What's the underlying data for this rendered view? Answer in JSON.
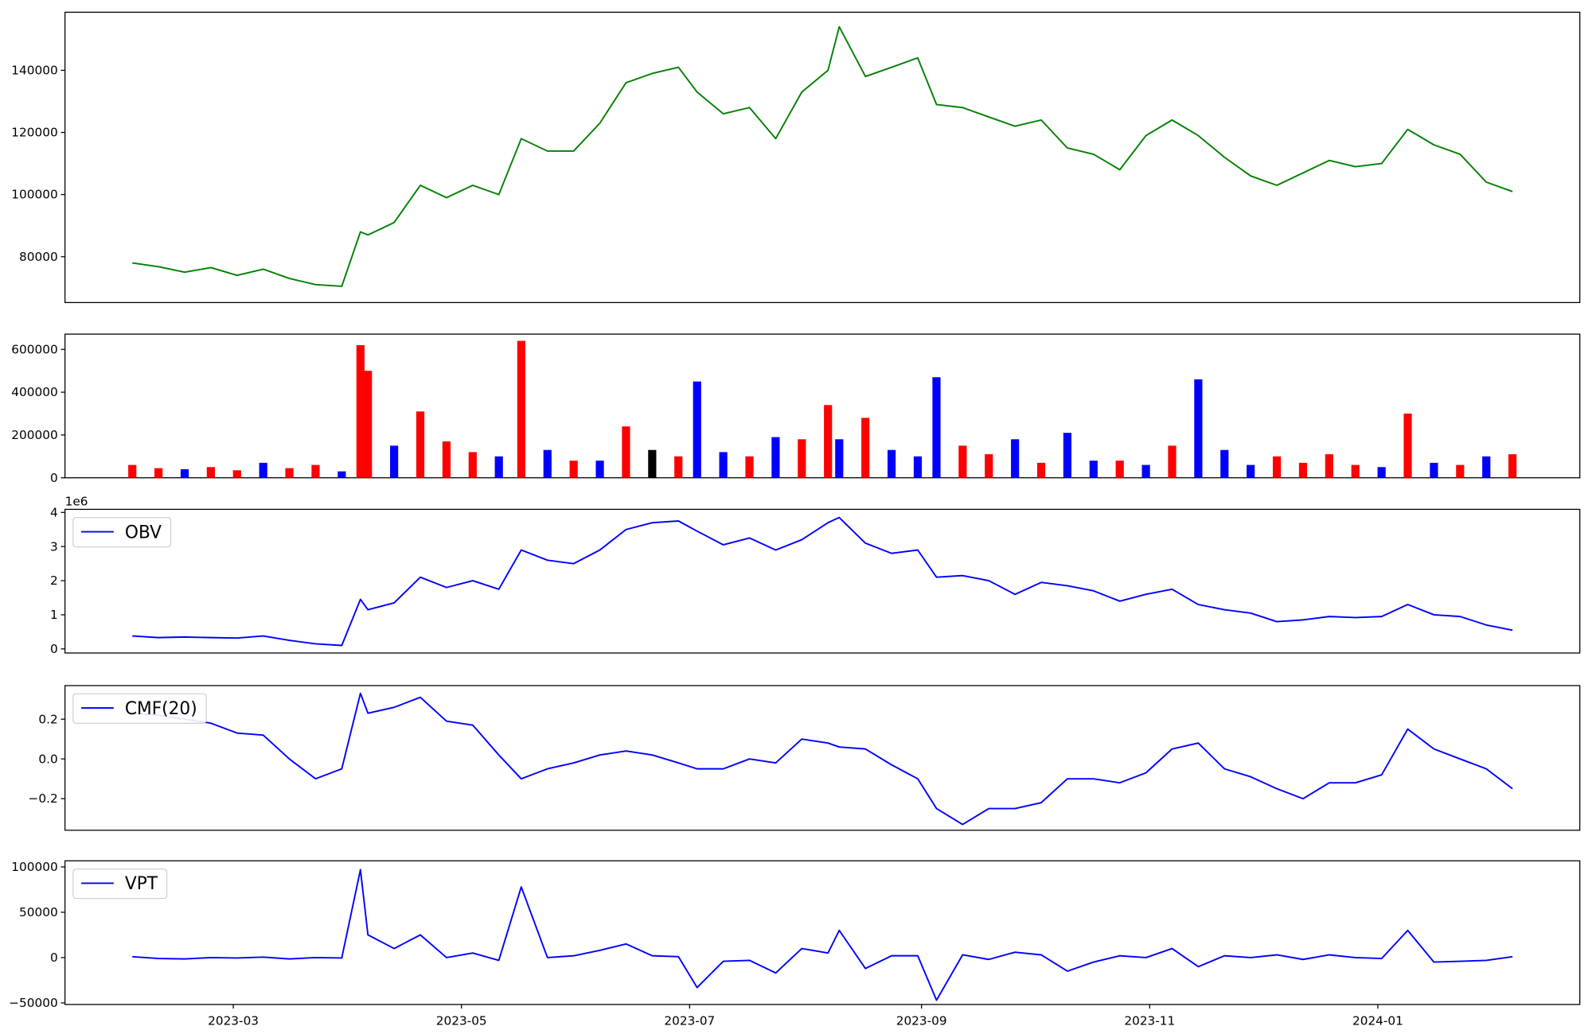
{
  "chart_data": [
    {
      "type": "line",
      "color": "green",
      "x": [
        "2023-02-02",
        "2023-02-09",
        "2023-02-16",
        "2023-02-23",
        "2023-03-02",
        "2023-03-09",
        "2023-03-16",
        "2023-03-23",
        "2023-03-30",
        "2023-04-04",
        "2023-04-06",
        "2023-04-13",
        "2023-04-20",
        "2023-04-27",
        "2023-05-04",
        "2023-05-11",
        "2023-05-17",
        "2023-05-24",
        "2023-05-31",
        "2023-06-07",
        "2023-06-14",
        "2023-06-21",
        "2023-06-28",
        "2023-07-03",
        "2023-07-10",
        "2023-07-17",
        "2023-07-24",
        "2023-07-31",
        "2023-08-07",
        "2023-08-10",
        "2023-08-17",
        "2023-08-24",
        "2023-08-31",
        "2023-09-05",
        "2023-09-12",
        "2023-09-19",
        "2023-09-26",
        "2023-10-03",
        "2023-10-10",
        "2023-10-17",
        "2023-10-24",
        "2023-10-31",
        "2023-11-07",
        "2023-11-14",
        "2023-11-21",
        "2023-11-28",
        "2023-12-05",
        "2023-12-12",
        "2023-12-19",
        "2023-12-26",
        "2024-01-02",
        "2024-01-09",
        "2024-01-16",
        "2024-01-23",
        "2024-01-30",
        "2024-02-06"
      ],
      "values": [
        78000,
        76800,
        75000,
        76500,
        74000,
        76000,
        73000,
        71000,
        70500,
        88000,
        87000,
        91000,
        103000,
        99000,
        103000,
        100000,
        118000,
        114000,
        114000,
        123000,
        136000,
        139000,
        141000,
        133000,
        126000,
        128000,
        118000,
        133000,
        140000,
        154000,
        138000,
        141000,
        144000,
        129000,
        128000,
        125000,
        122000,
        124000,
        115000,
        113000,
        108000,
        119000,
        124000,
        119000,
        112000,
        106000,
        103000,
        107000,
        111000,
        109000,
        110000,
        121000,
        116000,
        113000,
        104000,
        101000
      ],
      "xlim": [
        "2023-01-15",
        "2024-02-24"
      ],
      "ylim": [
        65245,
        158690
      ],
      "yticks": [
        80000,
        100000,
        120000,
        140000
      ]
    },
    {
      "type": "bar",
      "x": [
        "2023-02-02",
        "2023-02-09",
        "2023-02-16",
        "2023-02-23",
        "2023-03-02",
        "2023-03-09",
        "2023-03-16",
        "2023-03-23",
        "2023-03-30",
        "2023-04-04",
        "2023-04-06",
        "2023-04-13",
        "2023-04-20",
        "2023-04-27",
        "2023-05-04",
        "2023-05-11",
        "2023-05-17",
        "2023-05-24",
        "2023-05-31",
        "2023-06-07",
        "2023-06-14",
        "2023-06-21",
        "2023-06-28",
        "2023-07-03",
        "2023-07-10",
        "2023-07-17",
        "2023-07-24",
        "2023-07-31",
        "2023-08-07",
        "2023-08-10",
        "2023-08-17",
        "2023-08-24",
        "2023-08-31",
        "2023-09-05",
        "2023-09-12",
        "2023-09-19",
        "2023-09-26",
        "2023-10-03",
        "2023-10-10",
        "2023-10-17",
        "2023-10-24",
        "2023-10-31",
        "2023-11-07",
        "2023-11-14",
        "2023-11-21",
        "2023-11-28",
        "2023-12-05",
        "2023-12-12",
        "2023-12-19",
        "2023-12-26",
        "2024-01-02",
        "2024-01-09",
        "2024-01-16",
        "2024-01-23",
        "2024-01-30",
        "2024-02-06"
      ],
      "values": [
        60000,
        45000,
        40000,
        50000,
        35000,
        70000,
        45000,
        60000,
        30000,
        620000,
        500000,
        150000,
        310000,
        170000,
        120000,
        100000,
        640000,
        130000,
        80000,
        80000,
        240000,
        130000,
        100000,
        450000,
        120000,
        100000,
        190000,
        180000,
        340000,
        180000,
        280000,
        130000,
        100000,
        470000,
        150000,
        110000,
        180000,
        70000,
        210000,
        80000,
        80000,
        60000,
        150000,
        460000,
        130000,
        60000,
        100000,
        70000,
        110000,
        60000,
        50000,
        300000,
        70000,
        60000,
        100000,
        110000
      ],
      "colors": [
        "red",
        "red",
        "blue",
        "red",
        "red",
        "blue",
        "red",
        "red",
        "blue",
        "red",
        "red",
        "blue",
        "red",
        "red",
        "red",
        "blue",
        "red",
        "blue",
        "red",
        "blue",
        "red",
        "black",
        "red",
        "blue",
        "blue",
        "red",
        "blue",
        "red",
        "red",
        "blue",
        "red",
        "blue",
        "blue",
        "blue",
        "red",
        "red",
        "blue",
        "red",
        "blue",
        "blue",
        "red",
        "blue",
        "red",
        "blue",
        "blue",
        "blue",
        "red",
        "red",
        "red",
        "red",
        "blue",
        "red",
        "blue",
        "red",
        "blue",
        "red"
      ],
      "xlim": [
        "2023-01-15",
        "2024-02-24"
      ],
      "ylim": [
        0,
        671400
      ],
      "yticks": [
        0,
        200000,
        400000,
        600000
      ]
    },
    {
      "type": "line",
      "y_offset_label": "1e6",
      "legend": "upper left",
      "x": [
        "2023-02-02",
        "2023-02-09",
        "2023-02-16",
        "2023-02-23",
        "2023-03-02",
        "2023-03-09",
        "2023-03-16",
        "2023-03-23",
        "2023-03-30",
        "2023-04-04",
        "2023-04-06",
        "2023-04-13",
        "2023-04-20",
        "2023-04-27",
        "2023-05-04",
        "2023-05-11",
        "2023-05-17",
        "2023-05-24",
        "2023-05-31",
        "2023-06-07",
        "2023-06-14",
        "2023-06-21",
        "2023-06-28",
        "2023-07-03",
        "2023-07-10",
        "2023-07-17",
        "2023-07-24",
        "2023-07-31",
        "2023-08-07",
        "2023-08-10",
        "2023-08-17",
        "2023-08-24",
        "2023-08-31",
        "2023-09-05",
        "2023-09-12",
        "2023-09-19",
        "2023-09-26",
        "2023-10-03",
        "2023-10-10",
        "2023-10-17",
        "2023-10-24",
        "2023-10-31",
        "2023-11-07",
        "2023-11-14",
        "2023-11-21",
        "2023-11-28",
        "2023-12-05",
        "2023-12-12",
        "2023-12-19",
        "2023-12-26",
        "2024-01-02",
        "2024-01-09",
        "2024-01-16",
        "2024-01-23",
        "2024-01-30",
        "2024-02-06"
      ],
      "series": [
        {
          "name": "OBV",
          "color": "blue",
          "values": [
            0.38,
            0.33,
            0.35,
            0.33,
            0.32,
            0.38,
            0.25,
            0.15,
            0.1,
            1.45,
            1.15,
            1.35,
            2.1,
            1.8,
            2.0,
            1.75,
            2.9,
            2.6,
            2.5,
            2.9,
            3.5,
            3.7,
            3.75,
            3.45,
            3.05,
            3.25,
            2.9,
            3.2,
            3.7,
            3.85,
            3.1,
            2.8,
            2.9,
            2.1,
            2.15,
            2.0,
            1.6,
            1.95,
            1.85,
            1.7,
            1.4,
            1.6,
            1.75,
            1.3,
            1.15,
            1.05,
            0.8,
            0.85,
            0.95,
            0.92,
            0.95,
            1.3,
            1.0,
            0.95,
            0.7,
            0.55
          ]
        }
      ],
      "xlim": [
        "2023-01-15",
        "2024-02-24"
      ],
      "ylim": [
        -0.12,
        4.09
      ],
      "yticks": [
        0,
        1,
        2,
        3,
        4
      ]
    },
    {
      "type": "line",
      "legend": "upper left",
      "x": [
        "2023-02-02",
        "2023-02-09",
        "2023-02-16",
        "2023-02-23",
        "2023-03-02",
        "2023-03-09",
        "2023-03-16",
        "2023-03-23",
        "2023-03-30",
        "2023-04-04",
        "2023-04-06",
        "2023-04-13",
        "2023-04-20",
        "2023-04-27",
        "2023-05-04",
        "2023-05-11",
        "2023-05-17",
        "2023-05-24",
        "2023-05-31",
        "2023-06-07",
        "2023-06-14",
        "2023-06-21",
        "2023-06-28",
        "2023-07-03",
        "2023-07-10",
        "2023-07-17",
        "2023-07-24",
        "2023-07-31",
        "2023-08-07",
        "2023-08-10",
        "2023-08-17",
        "2023-08-24",
        "2023-08-31",
        "2023-09-05",
        "2023-09-12",
        "2023-09-19",
        "2023-09-26",
        "2023-10-03",
        "2023-10-10",
        "2023-10-17",
        "2023-10-24",
        "2023-10-31",
        "2023-11-07",
        "2023-11-14",
        "2023-11-21",
        "2023-11-28",
        "2023-12-05",
        "2023-12-12",
        "2023-12-19",
        "2023-12-26",
        "2024-01-02",
        "2024-01-09",
        "2024-01-16",
        "2024-01-23",
        "2024-01-30",
        "2024-02-06"
      ],
      "series": [
        {
          "name": "CMF(20)",
          "color": "blue",
          "values": [
            0.23,
            0.22,
            0.2,
            0.18,
            0.13,
            0.12,
            0.0,
            -0.1,
            -0.05,
            0.33,
            0.23,
            0.26,
            0.31,
            0.19,
            0.17,
            0.02,
            -0.1,
            -0.05,
            -0.02,
            0.02,
            0.04,
            0.02,
            -0.02,
            -0.05,
            -0.05,
            0.0,
            -0.02,
            0.1,
            0.08,
            0.06,
            0.05,
            -0.03,
            -0.1,
            -0.25,
            -0.33,
            -0.25,
            -0.25,
            -0.22,
            -0.1,
            -0.1,
            -0.12,
            -0.07,
            0.05,
            0.08,
            -0.05,
            -0.09,
            -0.15,
            -0.2,
            -0.12,
            -0.12,
            -0.08,
            0.15,
            0.05,
            0.0,
            -0.05,
            -0.15
          ]
        }
      ],
      "xlim": [
        "2023-01-15",
        "2024-02-24"
      ],
      "ylim": [
        -0.359,
        0.369
      ],
      "yticks": [
        {
          "value": -0.2,
          "label": "−0.2"
        },
        {
          "value": 0,
          "label": "0.0"
        },
        0.2
      ]
    },
    {
      "type": "line",
      "legend": "upper left",
      "x": [
        "2023-02-02",
        "2023-02-09",
        "2023-02-16",
        "2023-02-23",
        "2023-03-02",
        "2023-03-09",
        "2023-03-16",
        "2023-03-23",
        "2023-03-30",
        "2023-04-04",
        "2023-04-06",
        "2023-04-13",
        "2023-04-20",
        "2023-04-27",
        "2023-05-04",
        "2023-05-11",
        "2023-05-17",
        "2023-05-24",
        "2023-05-31",
        "2023-06-07",
        "2023-06-14",
        "2023-06-21",
        "2023-06-28",
        "2023-07-03",
        "2023-07-10",
        "2023-07-17",
        "2023-07-24",
        "2023-07-31",
        "2023-08-07",
        "2023-08-10",
        "2023-08-17",
        "2023-08-24",
        "2023-08-31",
        "2023-09-05",
        "2023-09-12",
        "2023-09-19",
        "2023-09-26",
        "2023-10-03",
        "2023-10-10",
        "2023-10-17",
        "2023-10-24",
        "2023-10-31",
        "2023-11-07",
        "2023-11-14",
        "2023-11-21",
        "2023-11-28",
        "2023-12-05",
        "2023-12-12",
        "2023-12-19",
        "2023-12-26",
        "2024-01-02",
        "2024-01-09",
        "2024-01-16",
        "2024-01-23",
        "2024-01-30",
        "2024-02-06"
      ],
      "series": [
        {
          "name": "VPT",
          "color": "blue",
          "values": [
            1000,
            -1000,
            -1500,
            0,
            -500,
            500,
            -1500,
            0,
            -500,
            97000,
            25000,
            10000,
            25000,
            0,
            5000,
            -3000,
            78000,
            0,
            2000,
            8000,
            15000,
            2000,
            1000,
            -33000,
            -4000,
            -3000,
            -17000,
            10000,
            5000,
            30000,
            -12000,
            2000,
            2000,
            -47000,
            3000,
            -2000,
            6000,
            3000,
            -15000,
            -5000,
            2000,
            0,
            10000,
            -10000,
            2000,
            0,
            3000,
            -2000,
            3000,
            0,
            -1000,
            30000,
            -5000,
            -4000,
            -3000,
            1000
          ]
        }
      ],
      "xlim": [
        "2023-01-15",
        "2024-02-24"
      ],
      "ylim": [
        -51700,
        106740
      ],
      "yticks": [
        {
          "value": -50000,
          "label": "−50000"
        },
        0,
        50000,
        100000
      ],
      "xticks": [
        "2023-03",
        "2023-05",
        "2023-07",
        "2023-09",
        "2023-11",
        "2024-01"
      ]
    }
  ]
}
